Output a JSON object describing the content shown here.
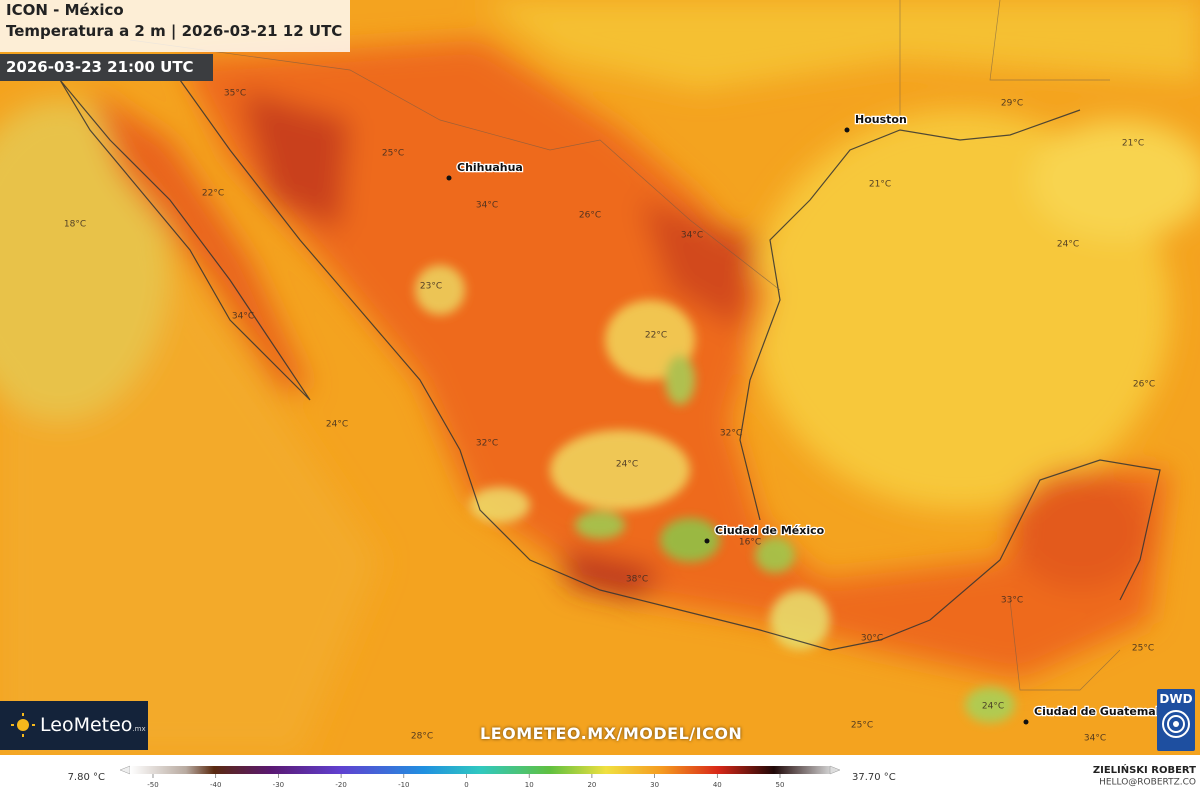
{
  "header": {
    "title": "ICON - México",
    "subtitle": "Temperatura a 2 m | 2026-03-21 12 UTC",
    "valid_time": "2026-03-23 21:00 UTC"
  },
  "cities": [
    "Houston",
    "Chihuahua",
    "Ciudad de México",
    "Ciudad de Guatemala"
  ],
  "temperature_labels": [
    "35°C",
    "25°C",
    "22°C",
    "18°C",
    "34°C",
    "26°C",
    "34°C",
    "29°C",
    "21°C",
    "21°C",
    "24°C",
    "23°C",
    "22°C",
    "34°C",
    "24°C",
    "32°C",
    "32°C",
    "24°C",
    "16°C",
    "38°C",
    "33°C",
    "30°C",
    "26°C",
    "25°C",
    "24°C",
    "25°C",
    "28°C",
    "34°C"
  ],
  "branding": {
    "logo": "LeoMeteo",
    "logo_suffix": ".mx",
    "url": "LEOMETEO.MX/MODEL/ICON",
    "source": "DWD",
    "author": "ZIELIŃSKI ROBERT",
    "contact": "HELLO@ROBERTZ.CO"
  },
  "colorbar": {
    "min_label": "7.80 °C",
    "max_label": "37.70 °C",
    "ticks": [
      -50,
      -40,
      -30,
      -20,
      -10,
      0,
      10,
      20,
      30,
      40,
      50
    ]
  }
}
